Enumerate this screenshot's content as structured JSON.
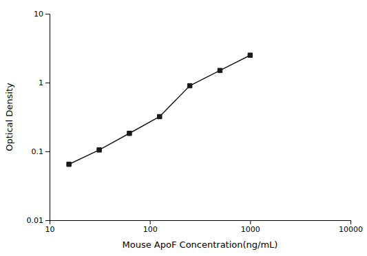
{
  "chart_data": {
    "type": "line",
    "x": [
      15.6,
      31.25,
      62.5,
      125,
      250,
      500,
      1000
    ],
    "values": [
      0.065,
      0.105,
      0.183,
      0.32,
      0.9,
      1.5,
      2.5
    ],
    "color": "#1a1a1a",
    "marker": "square",
    "line_style": "solid",
    "log": true,
    "xlabel": "Mouse ApoF Concentration(ng/mL)",
    "ylabel": "Optical Density",
    "xlim": [
      10,
      10000
    ],
    "ylim": [
      0.01,
      10
    ],
    "xticks": [
      10,
      100,
      1000,
      10000
    ],
    "yticks": [
      0.01,
      0.1,
      1,
      10
    ],
    "grid": false
  }
}
